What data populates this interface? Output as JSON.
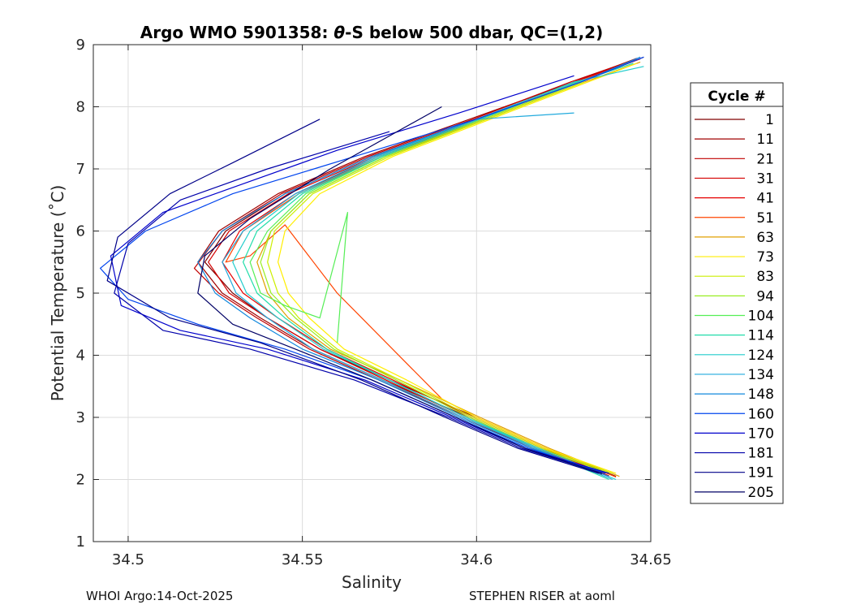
{
  "chart_data": {
    "type": "line",
    "title_prefix": "Argo WMO 5901358: ",
    "title_theta": "θ",
    "title_suffix": "-S below 500 dbar,  QC=(1,2)",
    "xlabel": "Salinity",
    "ylabel": "Potential Temperature (˚C)",
    "xlim": [
      34.49,
      34.65
    ],
    "ylim": [
      1,
      9
    ],
    "xticks": [
      34.5,
      34.55,
      34.6,
      34.65
    ],
    "xtick_labels": [
      "34.5",
      "34.55",
      "34.6",
      "34.65"
    ],
    "yticks": [
      1,
      2,
      3,
      4,
      5,
      6,
      7,
      8,
      9
    ],
    "ytick_labels": [
      "1",
      "2",
      "3",
      "4",
      "5",
      "6",
      "7",
      "8",
      "9"
    ],
    "grid": true,
    "legend_title": "Cycle #",
    "legend_position": "right-outside",
    "series": [
      {
        "name": "1",
        "color": "#800000",
        "x": [
          34.64,
          34.62,
          34.6,
          34.575,
          34.555,
          34.54,
          34.53,
          34.522,
          34.528,
          34.545,
          34.57,
          34.6,
          34.63,
          34.648
        ],
        "y": [
          2.05,
          2.5,
          3.0,
          3.6,
          4.1,
          4.6,
          5.0,
          5.5,
          6.0,
          6.6,
          7.2,
          7.8,
          8.4,
          8.8
        ]
      },
      {
        "name": "11",
        "color": "#a00000",
        "x": [
          34.638,
          34.618,
          34.598,
          34.573,
          34.553,
          34.538,
          34.527,
          34.52,
          34.526,
          34.543,
          34.568,
          34.598,
          34.628,
          34.646
        ],
        "y": [
          2.05,
          2.5,
          3.0,
          3.6,
          4.1,
          4.6,
          5.0,
          5.5,
          6.0,
          6.6,
          7.2,
          7.8,
          8.4,
          8.78
        ]
      },
      {
        "name": "21",
        "color": "#c00000",
        "x": [
          34.636,
          34.616,
          34.596,
          34.572,
          34.552,
          34.537,
          34.526,
          34.519,
          34.527,
          34.544,
          34.569,
          34.599,
          34.627,
          34.645
        ],
        "y": [
          2.08,
          2.5,
          3.0,
          3.6,
          4.1,
          4.6,
          5.0,
          5.4,
          6.0,
          6.6,
          7.2,
          7.8,
          8.4,
          8.75
        ]
      },
      {
        "name": "31",
        "color": "#d40000",
        "x": [
          34.637,
          34.617,
          34.597,
          34.574,
          34.555,
          34.54,
          34.529,
          34.523,
          34.529,
          34.546,
          34.571,
          34.6,
          34.628,
          34.646
        ],
        "y": [
          2.07,
          2.5,
          3.0,
          3.6,
          4.1,
          4.6,
          5.0,
          5.5,
          6.0,
          6.6,
          7.2,
          7.8,
          8.4,
          8.76
        ]
      },
      {
        "name": "41",
        "color": "#e60000",
        "x": [
          34.638,
          34.619,
          34.599,
          34.576,
          34.557,
          34.543,
          34.533,
          34.527,
          34.532,
          34.548,
          34.572,
          34.601,
          34.629,
          34.647
        ],
        "y": [
          2.06,
          2.5,
          3.0,
          3.6,
          4.1,
          4.6,
          5.0,
          5.5,
          6.0,
          6.6,
          7.2,
          7.8,
          8.4,
          8.77
        ]
      },
      {
        "name": "51",
        "color": "#ff4400",
        "x": [
          34.64,
          34.62,
          34.6,
          34.59,
          34.56,
          34.545,
          34.535,
          34.528,
          34.533,
          34.549,
          34.573,
          34.602,
          34.63
        ],
        "y": [
          2.04,
          2.5,
          3.0,
          3.3,
          5.0,
          6.1,
          5.6,
          5.5,
          6.0,
          6.6,
          7.2,
          7.8,
          8.4
        ]
      },
      {
        "name": "63",
        "color": "#e0a000",
        "x": [
          34.641,
          34.621,
          34.601,
          34.578,
          34.558,
          34.546,
          34.54,
          34.537,
          34.541,
          34.552,
          34.574,
          34.603,
          34.631,
          34.647
        ],
        "y": [
          2.05,
          2.5,
          3.0,
          3.6,
          4.1,
          4.6,
          5.0,
          5.5,
          6.0,
          6.6,
          7.2,
          7.8,
          8.4,
          8.72
        ]
      },
      {
        "name": "73",
        "color": "#ffee00",
        "x": [
          34.64,
          34.62,
          34.6,
          34.58,
          34.562,
          34.552,
          34.546,
          34.543,
          34.545,
          34.555,
          34.576,
          34.604,
          34.632,
          34.646
        ],
        "y": [
          2.1,
          2.5,
          3.0,
          3.6,
          4.1,
          4.6,
          5.0,
          5.5,
          6.0,
          6.6,
          7.2,
          7.8,
          8.4,
          8.7
        ]
      },
      {
        "name": "83",
        "color": "#ccee00",
        "x": [
          34.639,
          34.619,
          34.599,
          34.578,
          34.56,
          34.549,
          34.543,
          34.54,
          34.542,
          34.553,
          34.575,
          34.603,
          34.631
        ],
        "y": [
          2.1,
          2.5,
          3.0,
          3.6,
          4.1,
          4.6,
          5.0,
          5.5,
          6.0,
          6.6,
          7.2,
          7.8,
          8.4
        ]
      },
      {
        "name": "94",
        "color": "#99ee22",
        "x": [
          34.638,
          34.618,
          34.598,
          34.577,
          34.559,
          34.548,
          34.541,
          34.538,
          34.541,
          34.552,
          34.574,
          34.602,
          34.63
        ],
        "y": [
          2.1,
          2.5,
          3.0,
          3.6,
          4.1,
          4.6,
          5.0,
          5.5,
          6.0,
          6.6,
          7.2,
          7.8,
          8.4
        ]
      },
      {
        "name": "104",
        "color": "#55ee55",
        "x": [
          34.56,
          34.563,
          34.555,
          34.545,
          34.538,
          34.535,
          34.54,
          34.551,
          34.573,
          34.601,
          34.629
        ],
        "y": [
          4.2,
          6.3,
          4.6,
          4.8,
          5.0,
          5.5,
          6.0,
          6.6,
          7.2,
          7.8,
          8.4
        ]
      },
      {
        "name": "114",
        "color": "#22ddaa",
        "x": [
          34.638,
          34.617,
          34.597,
          34.575,
          34.557,
          34.545,
          34.537,
          34.533,
          34.537,
          34.55,
          34.573,
          34.601,
          34.629,
          34.645
        ],
        "y": [
          2.0,
          2.5,
          3.0,
          3.6,
          4.1,
          4.6,
          5.0,
          5.5,
          6.0,
          6.6,
          7.2,
          7.8,
          8.4,
          8.7
        ]
      },
      {
        "name": "124",
        "color": "#22cccc",
        "x": [
          34.64,
          34.618,
          34.597,
          34.575,
          34.556,
          34.543,
          34.534,
          34.53,
          34.535,
          34.549,
          34.572,
          34.6,
          34.628,
          34.648
        ],
        "y": [
          2.0,
          2.5,
          3.0,
          3.6,
          4.1,
          4.6,
          5.0,
          5.5,
          6.0,
          6.6,
          7.2,
          7.8,
          8.4,
          8.65
        ]
      },
      {
        "name": "134",
        "color": "#22aadd",
        "x": [
          34.639,
          34.617,
          34.596,
          34.573,
          34.553,
          34.54,
          34.531,
          34.527,
          34.533,
          34.548,
          34.571,
          34.6,
          34.628
        ],
        "y": [
          2.0,
          2.5,
          3.0,
          3.6,
          4.1,
          4.6,
          5.0,
          5.5,
          6.0,
          6.6,
          7.2,
          7.8,
          7.9
        ]
      },
      {
        "name": "148",
        "color": "#1188dd",
        "x": [
          34.638,
          34.616,
          34.595,
          34.572,
          34.55,
          34.535,
          34.525,
          34.52,
          34.527,
          34.545,
          34.57,
          34.6,
          34.63,
          34.647
        ],
        "y": [
          2.05,
          2.5,
          3.0,
          3.6,
          4.1,
          4.6,
          5.0,
          5.5,
          6.0,
          6.6,
          7.2,
          7.8,
          8.4,
          8.8
        ]
      },
      {
        "name": "160",
        "color": "#0044ee",
        "x": [
          34.637,
          34.615,
          34.594,
          34.57,
          34.545,
          34.52,
          34.5,
          34.492,
          34.505,
          34.53,
          34.565,
          34.6,
          34.63,
          34.648
        ],
        "y": [
          2.1,
          2.5,
          3.0,
          3.6,
          4.1,
          4.5,
          4.9,
          5.4,
          6.0,
          6.6,
          7.2,
          7.8,
          8.4,
          8.8
        ]
      },
      {
        "name": "170",
        "color": "#0000cc",
        "x": [
          34.638,
          34.614,
          34.593,
          34.568,
          34.54,
          34.515,
          34.498,
          34.495,
          34.51,
          34.535,
          34.56,
          34.595,
          34.628
        ],
        "y": [
          2.1,
          2.5,
          3.0,
          3.6,
          4.1,
          4.4,
          4.8,
          5.6,
          6.3,
          6.8,
          7.3,
          7.9,
          8.5
        ]
      },
      {
        "name": "181",
        "color": "#0000aa",
        "x": [
          34.636,
          34.613,
          34.592,
          34.565,
          34.535,
          34.51,
          34.496,
          34.5,
          34.515,
          34.54,
          34.575
        ],
        "y": [
          2.1,
          2.5,
          3.0,
          3.6,
          4.1,
          4.4,
          5.0,
          5.8,
          6.5,
          7.0,
          7.6
        ]
      },
      {
        "name": "191",
        "color": "#000088",
        "x": [
          34.635,
          34.612,
          34.591,
          34.567,
          34.538,
          34.512,
          34.494,
          34.497,
          34.512,
          34.53,
          34.555
        ],
        "y": [
          2.1,
          2.5,
          3.0,
          3.6,
          4.2,
          4.6,
          5.2,
          5.9,
          6.6,
          7.1,
          7.8
        ]
      },
      {
        "name": "205",
        "color": "#000066",
        "x": [
          34.636,
          34.614,
          34.594,
          34.57,
          34.548,
          34.53,
          34.52,
          34.522,
          34.535,
          34.558,
          34.59
        ],
        "y": [
          2.1,
          2.5,
          3.0,
          3.6,
          4.1,
          4.5,
          5.0,
          5.6,
          6.2,
          7.0,
          8.0
        ]
      }
    ]
  },
  "footer": {
    "left": "WHOI Argo:14-Oct-2025",
    "right": "STEPHEN RISER at aoml"
  }
}
